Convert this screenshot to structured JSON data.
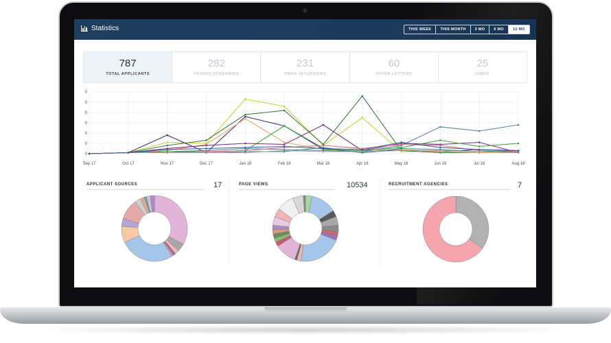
{
  "header": {
    "title": "Statistics"
  },
  "ranges": [
    {
      "label": "THIS WEEK",
      "active": false
    },
    {
      "label": "THIS MONTH",
      "active": false
    },
    {
      "label": "3 MO",
      "active": false
    },
    {
      "label": "6 MO",
      "active": false
    },
    {
      "label": "12 MO",
      "active": true
    }
  ],
  "kpis": [
    {
      "value": "787",
      "label": "TOTAL APPLICANTS",
      "active": true
    },
    {
      "value": "282",
      "label": "PASSED SCREENING",
      "active": false
    },
    {
      "value": "231",
      "label": "VIDEO INTERVIEWS",
      "active": false
    },
    {
      "value": "60",
      "label": "OFFER LETTERS",
      "active": false
    },
    {
      "value": "25",
      "label": "HIRED",
      "active": false
    }
  ],
  "panels": {
    "sources": {
      "title": "APPLICANT SOURCES",
      "count": "17"
    },
    "views": {
      "title": "PAGE VIEWS",
      "count": "10534"
    },
    "agencies": {
      "title": "RECRUITMENT AGENCIES",
      "count": "7"
    }
  },
  "chart_data": [
    {
      "type": "line",
      "x": [
        "Sep 17",
        "Oct 17",
        "Nov 17",
        "Dec 17",
        "Jan 18",
        "Feb 18",
        "Mar 18",
        "Apr 18",
        "May 18",
        "Jun 18",
        "Jul 18",
        "Aug 18"
      ],
      "y_tick_labels": [
        "0",
        "0",
        "0",
        "0",
        "0",
        "0",
        "0"
      ],
      "ylim": [
        0,
        60
      ],
      "grid": true,
      "series": [
        {
          "color": "#c5d63a",
          "values": [
            0,
            1,
            11,
            10,
            53,
            46,
            8,
            35,
            2,
            2,
            1,
            1
          ]
        },
        {
          "color": "#3d7a3f",
          "values": [
            0,
            1,
            8,
            13,
            38,
            42,
            9,
            56,
            3,
            1,
            1,
            2
          ]
        },
        {
          "color": "#4a2e80",
          "values": [
            0,
            1,
            18,
            1,
            36,
            27,
            5,
            1,
            4,
            2,
            4,
            3
          ]
        },
        {
          "color": "#e9a56a",
          "values": [
            0,
            1,
            3,
            9,
            34,
            11,
            4,
            3,
            4,
            2,
            1,
            1
          ]
        },
        {
          "color": "#5b7ca8",
          "values": [
            0,
            1,
            2,
            3,
            5,
            4,
            3,
            2,
            8,
            26,
            22,
            28
          ]
        },
        {
          "color": "#7b2a8a",
          "values": [
            0,
            1,
            5,
            8,
            10,
            9,
            28,
            3,
            10,
            9,
            11,
            1
          ]
        },
        {
          "color": "#3ca03c",
          "values": [
            0,
            1,
            2,
            2,
            3,
            27,
            4,
            3,
            6,
            13,
            7,
            10
          ]
        },
        {
          "color": "#d87070",
          "values": [
            0,
            1,
            1,
            2,
            3,
            6,
            8,
            5,
            9,
            8,
            3,
            2
          ]
        },
        {
          "color": "#2f8f8f",
          "values": [
            0,
            1,
            1,
            1,
            2,
            2,
            6,
            1,
            5,
            4,
            2,
            3
          ]
        },
        {
          "color": "#9a9a9a",
          "values": [
            0,
            1,
            1,
            1,
            1,
            3,
            2,
            2,
            3,
            3,
            2,
            1
          ]
        },
        {
          "color": "#3a5a9a",
          "values": [
            0,
            1,
            4,
            5,
            6,
            7,
            5,
            4,
            11,
            6,
            4,
            3
          ]
        }
      ]
    },
    {
      "type": "pie",
      "title": "APPLICANT SOURCES",
      "slices": [
        {
          "value": 33,
          "color": "#e2b4d8"
        },
        {
          "value": 4,
          "color": "#a8a8a8"
        },
        {
          "value": 2,
          "color": "#f2b6b6"
        },
        {
          "value": 1,
          "color": "#9c6aa8"
        },
        {
          "value": 1,
          "color": "#e08a8a"
        },
        {
          "value": 27,
          "color": "#a5c6e8"
        },
        {
          "value": 8,
          "color": "#f6c9a5"
        },
        {
          "value": 4,
          "color": "#b5a4d4"
        },
        {
          "value": 10,
          "color": "#e6a9a9"
        },
        {
          "value": 3,
          "color": "#cfcfcf"
        },
        {
          "value": 2,
          "color": "#d8b08a"
        },
        {
          "value": 1,
          "color": "#7a9ac8"
        },
        {
          "value": 2,
          "color": "#c8c8c8"
        },
        {
          "value": 2,
          "color": "#b48ac8"
        }
      ]
    },
    {
      "type": "pie",
      "title": "PAGE VIEWS",
      "slices": [
        {
          "value": 3,
          "color": "#a8d8a0"
        },
        {
          "value": 12,
          "color": "#a5c6e8"
        },
        {
          "value": 3,
          "color": "#5a5a5a"
        },
        {
          "value": 4,
          "color": "#a8a8a8"
        },
        {
          "value": 3,
          "color": "#8a8a8a"
        },
        {
          "value": 2,
          "color": "#c86a6a"
        },
        {
          "value": 2,
          "color": "#9a74b8"
        },
        {
          "value": 20,
          "color": "#a5c6e8"
        },
        {
          "value": 2,
          "color": "#e8b4b4"
        },
        {
          "value": 1,
          "color": "#6a6a6a"
        },
        {
          "value": 10,
          "color": "#e2b4d8"
        },
        {
          "value": 2,
          "color": "#c85a6a"
        },
        {
          "value": 2,
          "color": "#8ab87a"
        },
        {
          "value": 2,
          "color": "#6a8a5a"
        },
        {
          "value": 2,
          "color": "#d89a7a"
        },
        {
          "value": 2,
          "color": "#a88ac8"
        },
        {
          "value": 4,
          "color": "#e8c8e0"
        },
        {
          "value": 4,
          "color": "#f2b6b6"
        },
        {
          "value": 8,
          "color": "#f0f0f0"
        },
        {
          "value": 5,
          "color": "#d8d8d8"
        },
        {
          "value": 1,
          "color": "#888888"
        }
      ]
    },
    {
      "type": "pie",
      "title": "RECRUITMENT AGENCIES",
      "slices": [
        {
          "value": 35,
          "color": "#b2b2b2"
        },
        {
          "value": 65,
          "color": "#f4a5ad"
        }
      ]
    }
  ]
}
